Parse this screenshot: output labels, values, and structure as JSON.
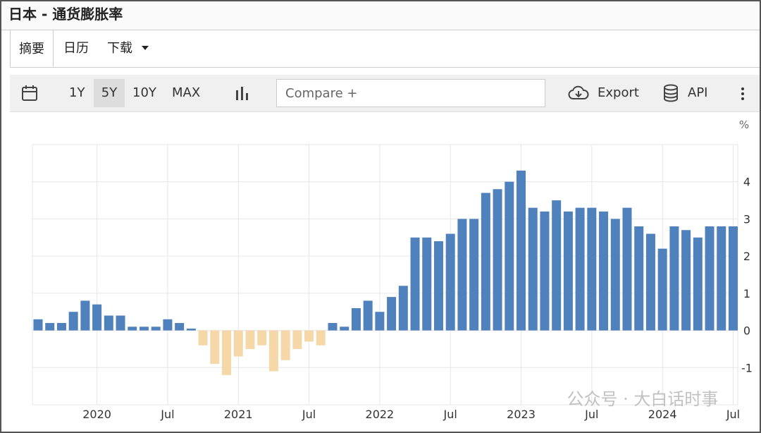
{
  "header": {
    "title": "日本 - 通货膨胀率"
  },
  "tabs": [
    "摘要",
    "日历",
    "下载"
  ],
  "toolbar": {
    "ranges": [
      "1Y",
      "5Y",
      "10Y",
      "MAX"
    ],
    "compare": "Compare +",
    "export": "Export",
    "api": "API"
  },
  "watermark": "公众号 · 大白话时事",
  "chart_data": {
    "type": "bar",
    "unit_label": "%",
    "categories": [
      null,
      null,
      null,
      null,
      null,
      "2020",
      null,
      null,
      null,
      null,
      null,
      "Jul",
      null,
      null,
      null,
      null,
      null,
      "2021",
      null,
      null,
      null,
      null,
      null,
      "Jul",
      null,
      null,
      null,
      null,
      null,
      "2022",
      null,
      null,
      null,
      null,
      null,
      "Jul",
      null,
      null,
      null,
      null,
      null,
      "2023",
      null,
      null,
      null,
      null,
      null,
      "Jul",
      null,
      null,
      null,
      null,
      null,
      "2024",
      null,
      null,
      null,
      null,
      null,
      "Jul"
    ],
    "values": [
      0.3,
      0.2,
      0.2,
      0.5,
      0.8,
      0.7,
      0.4,
      0.4,
      0.1,
      0.1,
      0.1,
      0.3,
      0.2,
      0.05,
      -0.4,
      -0.9,
      -1.2,
      -0.7,
      -0.5,
      -0.4,
      -1.1,
      -0.8,
      -0.5,
      -0.3,
      -0.4,
      0.2,
      0.1,
      0.6,
      0.8,
      0.5,
      0.9,
      1.2,
      2.5,
      2.5,
      2.4,
      2.6,
      3.0,
      3.0,
      3.7,
      3.8,
      4.0,
      4.3,
      3.3,
      3.2,
      3.5,
      3.2,
      3.3,
      3.3,
      3.2,
      3.0,
      3.3,
      2.8,
      2.6,
      2.2,
      2.8,
      2.7,
      2.5,
      2.8,
      2.8,
      2.8
    ],
    "color": "#4f81bd",
    "negative_color": "#f5d7a8",
    "ylim": [
      -2,
      5
    ],
    "yticks": [
      -1,
      0,
      1,
      2,
      3,
      4
    ],
    "grid": true
  }
}
